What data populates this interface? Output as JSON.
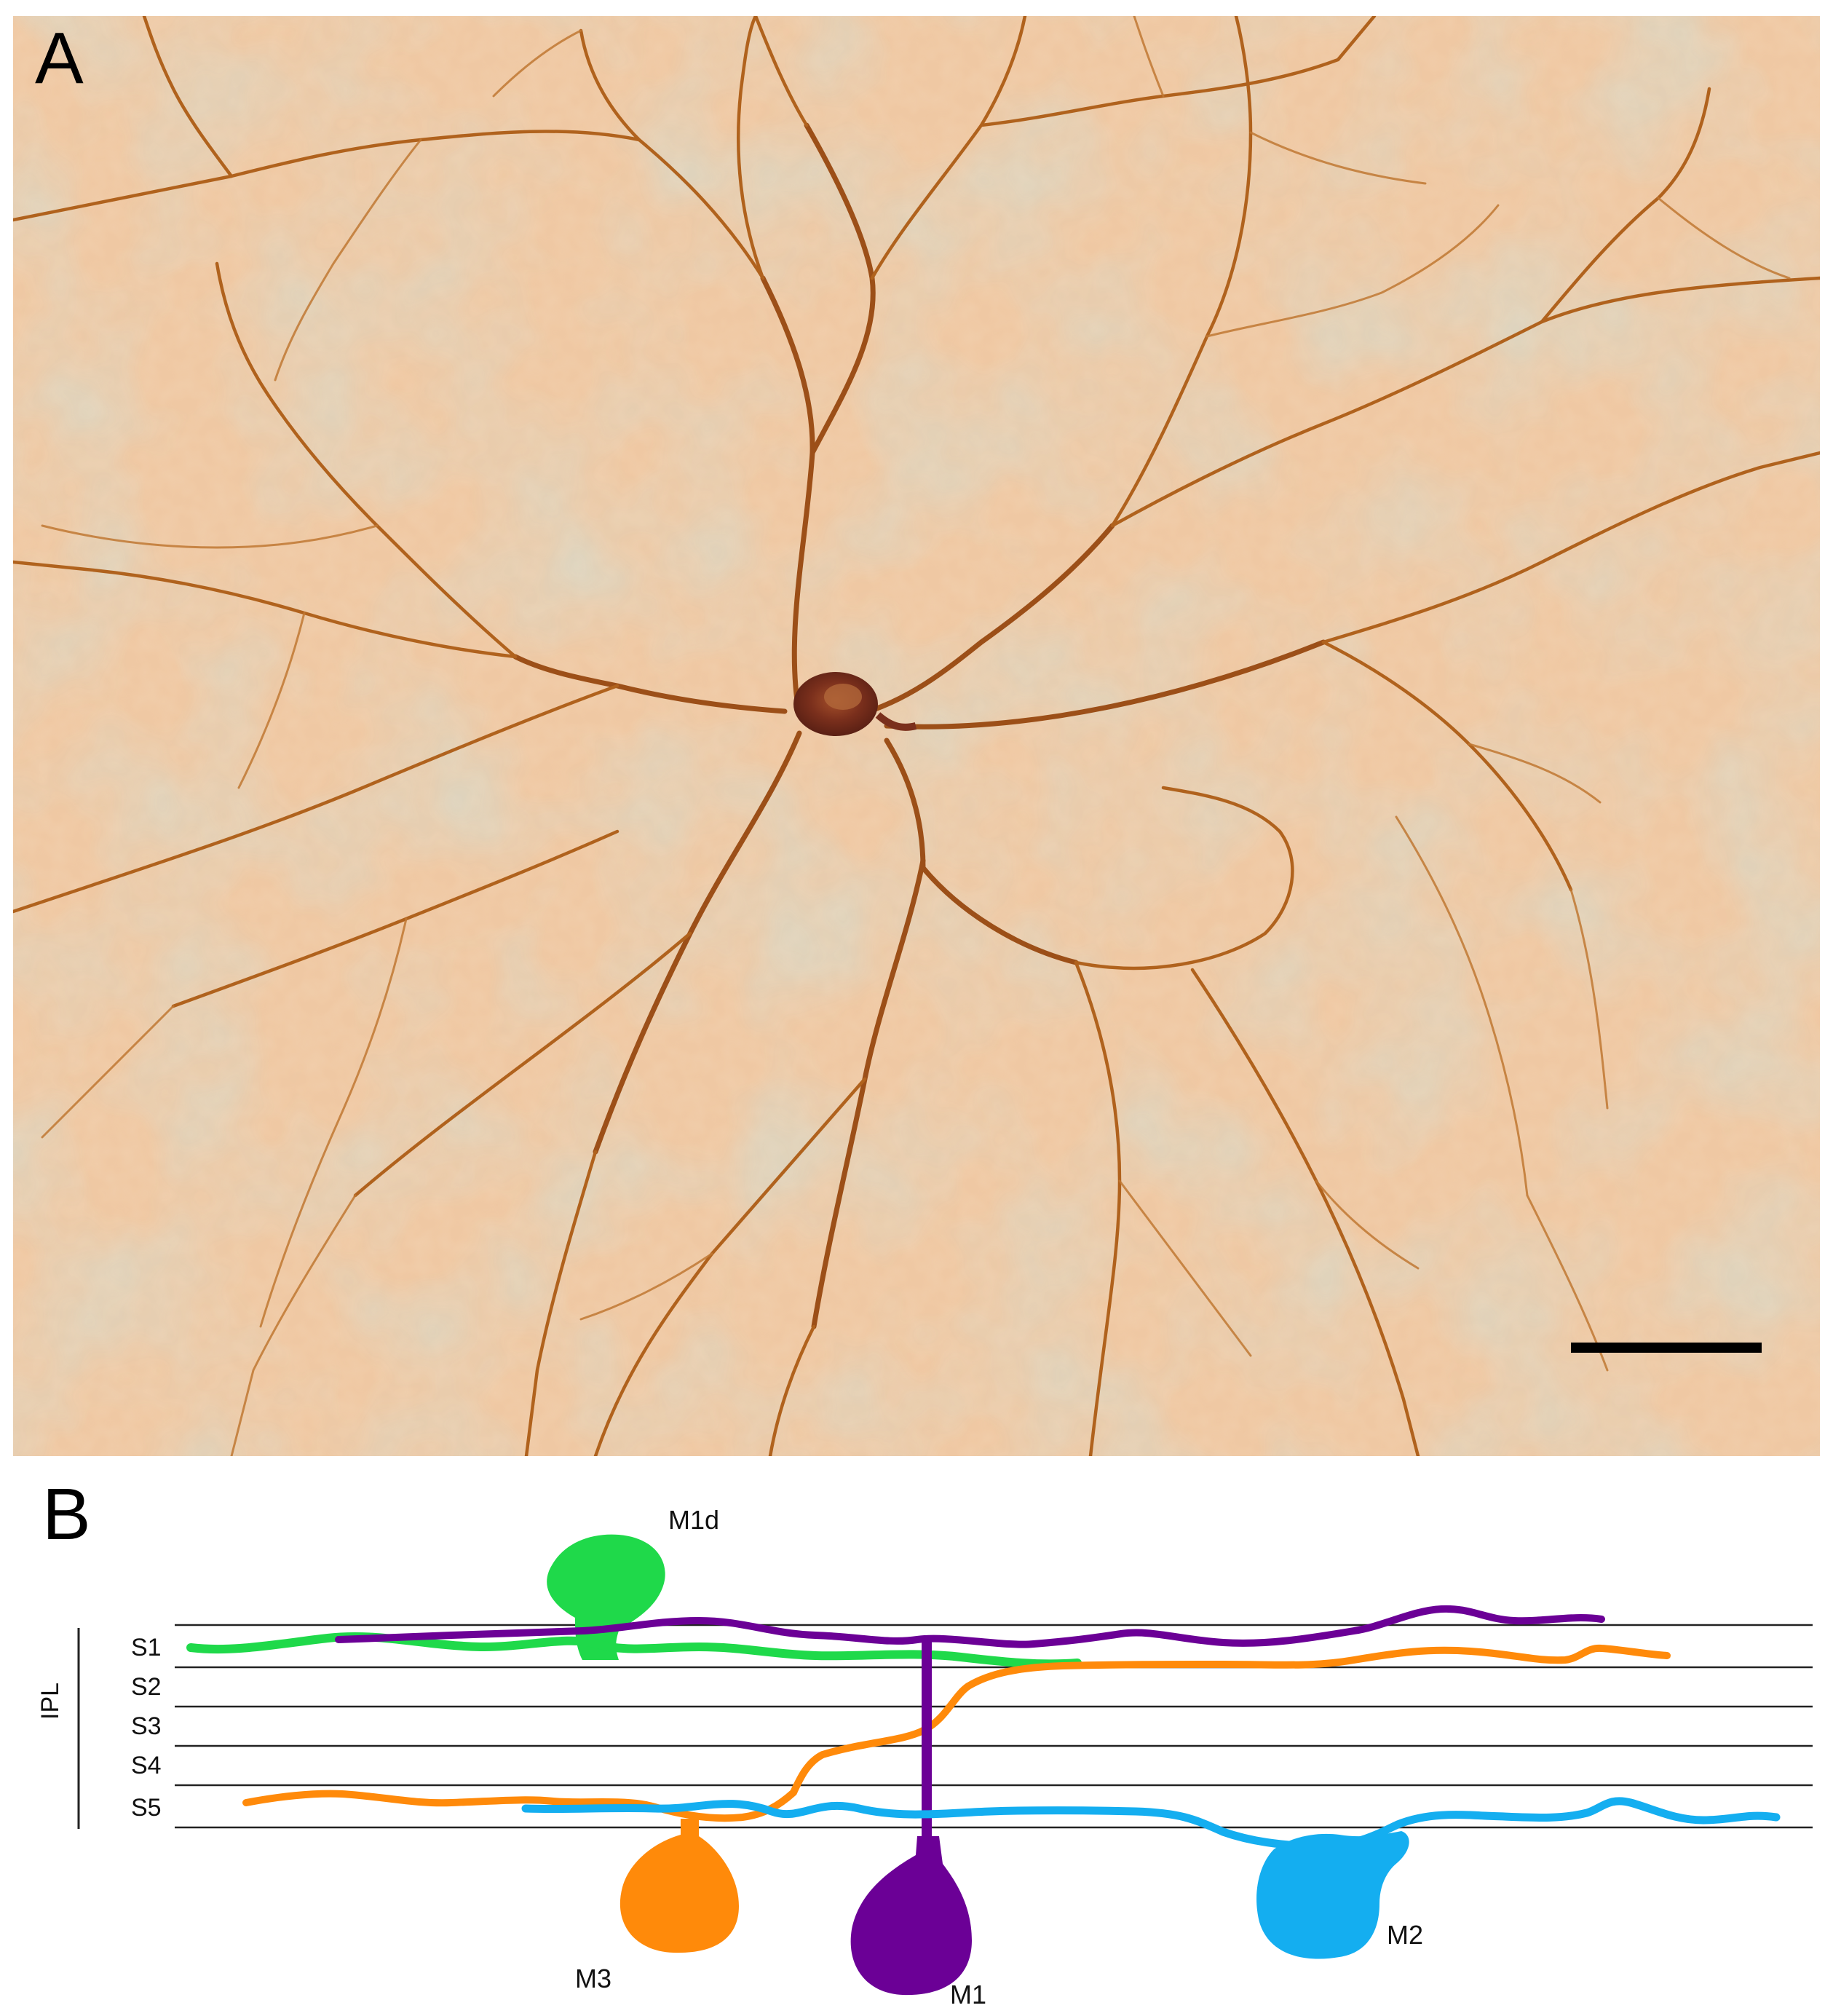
{
  "panel_a": {
    "letter": "A",
    "colors": {
      "background": "#f0caa6",
      "dendrite": "#b3641c",
      "soma": "#6a2a1a",
      "scale_bar": "#000000"
    }
  },
  "panel_b": {
    "letter": "B",
    "region_label": "IPL",
    "strata": [
      "S1",
      "S2",
      "S3",
      "S4",
      "S5"
    ],
    "cells": [
      {
        "label": "M1d",
        "color": "#1fd94a"
      },
      {
        "label": "M1",
        "color": "#6b0096"
      },
      {
        "label": "M2",
        "color": "#14aef0"
      },
      {
        "label": "M3",
        "color": "#ff8a0a"
      }
    ]
  }
}
